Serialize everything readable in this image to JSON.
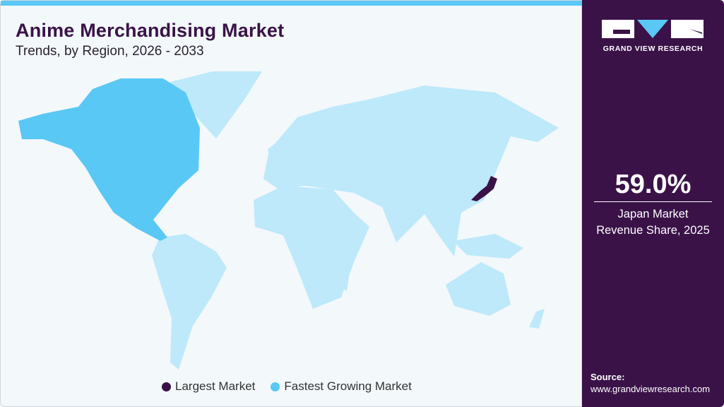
{
  "header": {
    "title": "Anime Merchandising Market",
    "subtitle": "Trends, by Region, 2026 - 2033"
  },
  "colors": {
    "largest": "#3a1248",
    "fastest": "#5ac8f5",
    "other": "#bde9fa",
    "panel": "#3a1248"
  },
  "map": {
    "regions": [
      {
        "name": "North America",
        "category": "fastest"
      },
      {
        "name": "Japan",
        "category": "largest"
      }
    ]
  },
  "legend": [
    {
      "label": "Largest Market",
      "color": "#3a1248"
    },
    {
      "label": "Fastest Growing Market",
      "color": "#5ac8f5"
    }
  ],
  "panel": {
    "brand": "GRAND VIEW RESEARCH",
    "stat_value": "59.0%",
    "stat_label_1": "Japan Market",
    "stat_label_2": "Revenue Share, 2025",
    "source_label": "Source:",
    "source_url": "www.grandviewresearch.com"
  }
}
